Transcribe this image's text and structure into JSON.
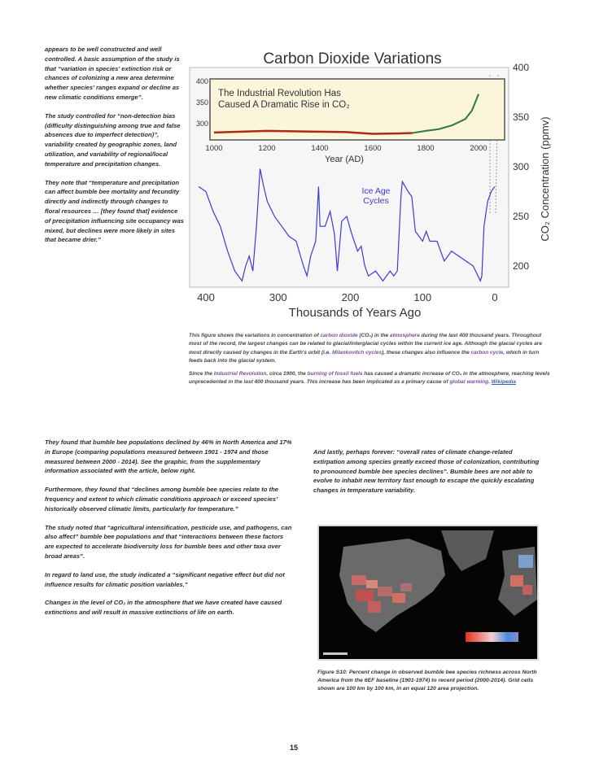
{
  "left_column": {
    "paragraphs": [
      "appears to be well constructed and well controlled.  A basic assumption of the study is that “variation in species’ extinction risk or chances of colonizing a new area determine whether species’ ranges expand or decline as new climatic conditions emerge”.",
      "The study controlled for “non-detection bias (difficulty distinguishing among true and false absences due to imperfect detection)”, variability created by geographic zones, land utilization, and variability of regional/local temperature and precipitation changes.",
      "They note that “temperature and precipitation can affect bumble bee mortality and fecundity directly and indirectly through changes to floral resources … [they found that] evidence of precipitation influencing site occupancy was mixed, but declines were more likely in sites that became drier.”"
    ]
  },
  "figure": {
    "title": "Carbon Dioxide Variations",
    "y_axis_label": "CO₂ Concentration (ppmv)",
    "x_axis_label": "Thousands of Years Ago",
    "annotation": "Ice Age Cycles",
    "annotation_lines": [
      "Ice Age",
      "Cycles"
    ],
    "x_ticks": [
      "400",
      "300",
      "200",
      "100",
      "0"
    ],
    "y_ticks": [
      "400",
      "350",
      "300",
      "250",
      "200"
    ],
    "colors": {
      "ice_age": "#3b3bd6",
      "preindustrial": "#b02a10",
      "industrial": "#2f7a3a",
      "inset_bg": "#fbf5dc"
    },
    "inset": {
      "title_line1": "The Industrial Revolution Has",
      "title_line2": "Caused A Dramatic Rise in CO₂",
      "x_label": "Year (AD)",
      "x_ticks": [
        "1000",
        "1200",
        "1400",
        "1600",
        "1800",
        "2000"
      ],
      "y_ticks": [
        "400",
        "350",
        "300"
      ],
      "series": [
        [
          1000,
          279
        ],
        [
          1100,
          281
        ],
        [
          1200,
          283
        ],
        [
          1300,
          282
        ],
        [
          1400,
          281
        ],
        [
          1500,
          280
        ],
        [
          1600,
          276
        ],
        [
          1700,
          277
        ],
        [
          1750,
          278
        ],
        [
          1800,
          283
        ],
        [
          1850,
          287
        ],
        [
          1900,
          296
        ],
        [
          1950,
          311
        ],
        [
          1975,
          331
        ],
        [
          2000,
          370
        ]
      ]
    },
    "ice_age_series": [
      [
        410,
        280
      ],
      [
        400,
        275
      ],
      [
        390,
        255
      ],
      [
        380,
        240
      ],
      [
        370,
        215
      ],
      [
        360,
        195
      ],
      [
        350,
        185
      ],
      [
        345,
        200
      ],
      [
        340,
        210
      ],
      [
        335,
        195
      ],
      [
        330,
        240
      ],
      [
        325,
        298
      ],
      [
        320,
        280
      ],
      [
        315,
        265
      ],
      [
        305,
        250
      ],
      [
        295,
        240
      ],
      [
        285,
        230
      ],
      [
        275,
        225
      ],
      [
        265,
        200
      ],
      [
        260,
        190
      ],
      [
        255,
        210
      ],
      [
        248,
        225
      ],
      [
        244,
        280
      ],
      [
        242,
        240
      ],
      [
        235,
        240
      ],
      [
        228,
        255
      ],
      [
        222,
        232
      ],
      [
        218,
        195
      ],
      [
        212,
        245
      ],
      [
        205,
        250
      ],
      [
        198,
        232
      ],
      [
        190,
        215
      ],
      [
        185,
        220
      ],
      [
        180,
        200
      ],
      [
        175,
        190
      ],
      [
        165,
        195
      ],
      [
        155,
        185
      ],
      [
        145,
        195
      ],
      [
        140,
        190
      ],
      [
        135,
        195
      ],
      [
        130,
        270
      ],
      [
        128,
        285
      ],
      [
        120,
        275
      ],
      [
        115,
        270
      ],
      [
        110,
        235
      ],
      [
        105,
        230
      ],
      [
        100,
        225
      ],
      [
        95,
        235
      ],
      [
        90,
        225
      ],
      [
        80,
        225
      ],
      [
        70,
        205
      ],
      [
        60,
        215
      ],
      [
        50,
        210
      ],
      [
        40,
        205
      ],
      [
        30,
        200
      ],
      [
        20,
        185
      ],
      [
        18,
        190
      ],
      [
        15,
        240
      ],
      [
        10,
        265
      ],
      [
        5,
        275
      ],
      [
        0,
        280
      ]
    ]
  },
  "figure_caption": {
    "p1": [
      {
        "t": "This figure shows the variations in concentration of ",
        "link": false
      },
      {
        "t": "carbon dioxide",
        "link": true
      },
      {
        "t": " (CO₂) in the ",
        "link": false
      },
      {
        "t": "atmosphere",
        "link": true
      },
      {
        "t": " during the last 400 thousand years. Throughout most of the record, the largest changes can be related to glacial/interglacial cycles within the current ice age. Although the glacial cycles are most directly caused by changes in the Earth's orbit (i.e. ",
        "link": false
      },
      {
        "t": "Milankovitch cycles",
        "link": true
      },
      {
        "t": "), these changes also influence the ",
        "link": false
      },
      {
        "t": "carbon cycle",
        "link": true
      },
      {
        "t": ", which in turn feeds back into the glacial system.",
        "link": false
      }
    ],
    "p2": [
      {
        "t": "Since the ",
        "link": false
      },
      {
        "t": "Industrial Revolution",
        "link": true
      },
      {
        "t": ", circa 1900, the ",
        "link": false
      },
      {
        "t": "burning of fossil fuels",
        "link": true
      },
      {
        "t": " has caused a dramatic increase of CO₂ in the atmosphere, reaching levels unprecedented in the last 400 thousand years. This increase has been implicated as a primary cause of ",
        "link": false
      },
      {
        "t": "global warming",
        "link": true
      },
      {
        "t": ". ",
        "link": false
      }
    ],
    "source": "Wikipedia"
  },
  "bottom_left": {
    "paragraphs": [
      "They found that bumble bee populations declined by 46% in North America and 17% in Europe (comparing populations measured between 1901 - 1974 and those measured between 2000 - 2014).  See the graphic, from the supplementary information associated with the article, below right.",
      "Furthermore, they found that “declines among bumble bee species relate to the frequency and extent to which climatic conditions approach or exceed species’ historically observed climatic limits, particularly for temperature.”",
      "The study noted that “agricultural intensification, pesticide use, and pathogens, can also affect” bumble bee populations and that “interactions between these factors are expected to accelerate biodiversity loss for bumble bees and other taxa over broad areas”.",
      "In regard to land use, the study indicated a “significant negative effect but did not influence results for climatic position variables.”",
      "Changes in the level of CO₂ in the atmosphere that we have created have caused extinctions and will result in massive extinctions of life on earth."
    ]
  },
  "bottom_right": {
    "paragraph": "And lastly, perhaps forever: “overall rates of climate change-related extirpation among species greatly exceed those of colonization, contributing to pronounced bumble bee species declines”.  Bumble bees are not able to evolve to inhabit new territory fast enough to escape the quickly escalating changes in temperature variability.",
    "map_caption": "Figure S10: Percent change in observed bumble bee species richness across North America from the 6EF baseline (1901-1974) to recent period (2000-2014). Grid cells shown are 100 km by 100 km, in an equal 120 area projection."
  },
  "page_number": "15"
}
